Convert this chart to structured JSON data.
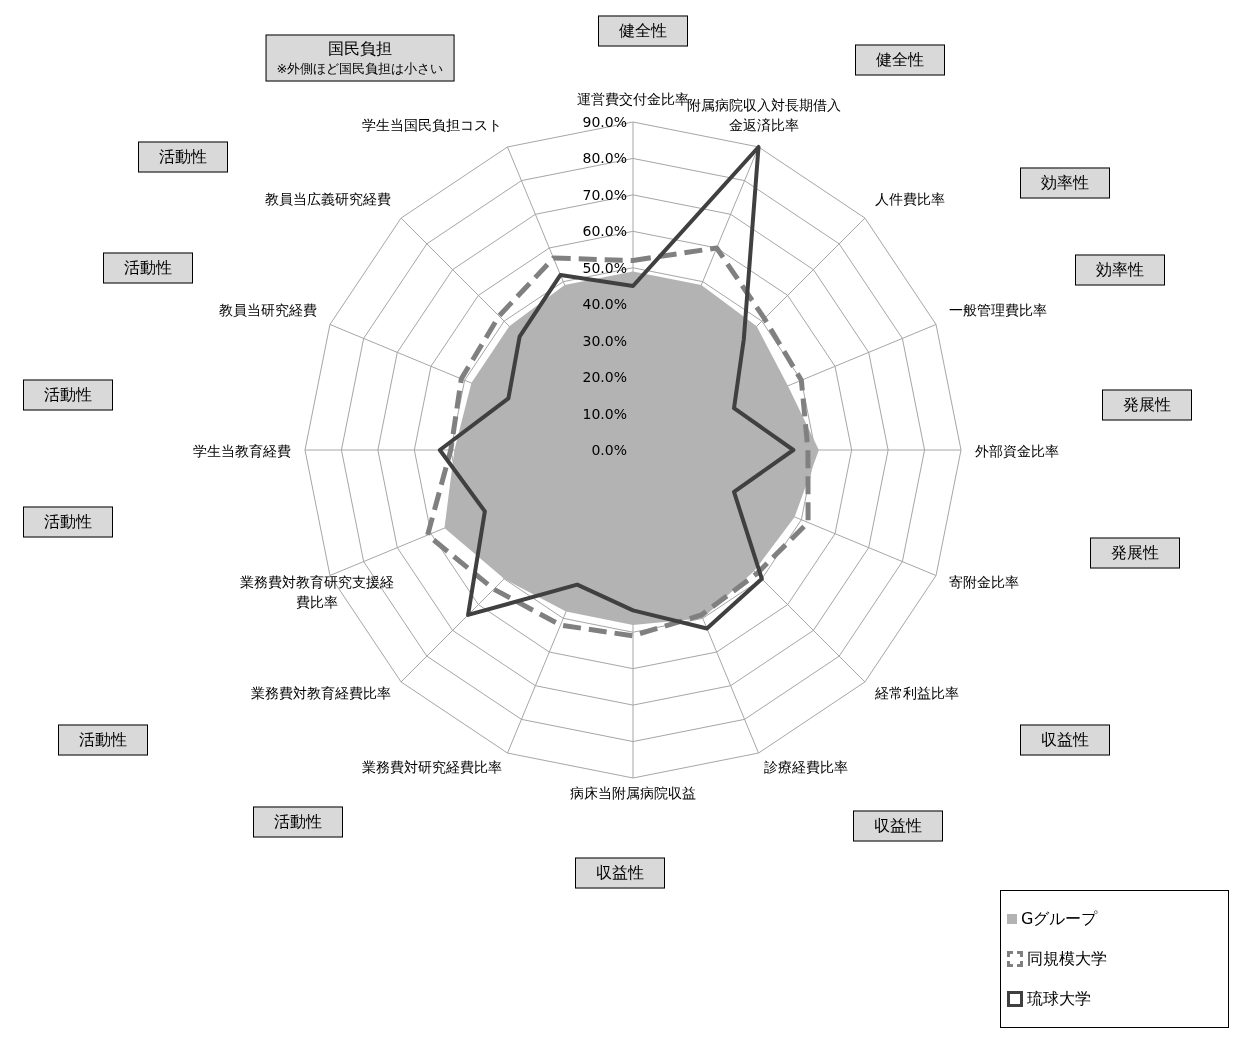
{
  "chart_data": {
    "type": "radar",
    "categories": [
      "運営費交付金比率",
      "附属病院収入対長期借入金返済比率",
      "人件費比率",
      "一般管理費比率",
      "外部資金比率",
      "寄附金比率",
      "経常利益比率",
      "診療経費比率",
      "病床当附属病院収益",
      "業務費対研究経費比率",
      "業務費対教育経費比率",
      "業務費対教育研究支援経費比率",
      "学生当教育経費",
      "教員当研究経費",
      "教員当広義研究経費",
      "学生当国民負担コスト"
    ],
    "series": [
      {
        "name": "Gグループ",
        "type": "area",
        "color": "#b3b3b3",
        "values": [
          49,
          49,
          48,
          46,
          51,
          48,
          47,
          50,
          48,
          48,
          50,
          56,
          49,
          48,
          48,
          49
        ]
      },
      {
        "name": "同規模大学",
        "line_style": "dashed",
        "color": "#808080",
        "values": [
          52,
          60,
          51,
          50,
          48,
          52,
          48,
          49,
          51,
          52,
          54,
          61,
          50,
          51,
          52,
          57
        ]
      },
      {
        "name": "琉球大学",
        "line_style": "solid",
        "color": "#404040",
        "values": [
          45,
          90,
          43,
          30,
          44,
          30,
          50,
          53,
          44,
          40,
          64,
          44,
          53,
          37,
          44,
          52
        ]
      }
    ],
    "ylim": [
      0,
      90
    ],
    "yticks": [
      {
        "value": 0,
        "label": "0.0%"
      },
      {
        "value": 10,
        "label": "10.0%"
      },
      {
        "value": 20,
        "label": "20.0%"
      },
      {
        "value": 30,
        "label": "30.0%"
      },
      {
        "value": 40,
        "label": "40.0%"
      },
      {
        "value": 50,
        "label": "50.0%"
      },
      {
        "value": 60,
        "label": "60.0%"
      },
      {
        "value": 70,
        "label": "70.0%"
      },
      {
        "value": 80,
        "label": "80.0%"
      },
      {
        "value": 90,
        "label": "90.0%"
      }
    ],
    "grid": true,
    "legend": "bottom right",
    "annotations": [
      "健全性",
      "健全性",
      "効率性",
      "効率性",
      "発展性",
      "発展性",
      "収益性",
      "収益性",
      "収益性",
      "活動性",
      "活動性",
      "活動性",
      "活動性",
      "活動性",
      "活動性",
      "国民負担",
      "※外側ほど国民負担は小さい"
    ]
  }
}
